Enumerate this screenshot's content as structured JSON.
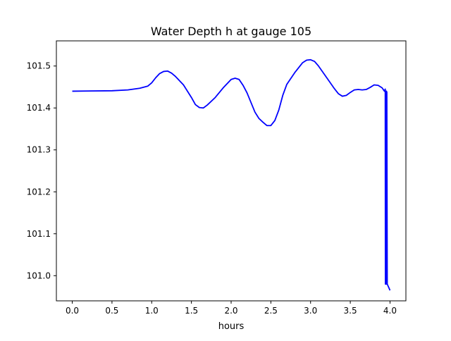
{
  "chart_data": {
    "type": "line",
    "title": "Water Depth h at gauge 105",
    "xlabel": "hours",
    "ylabel": "",
    "xlim": [
      -0.2,
      4.2
    ],
    "ylim": [
      100.94,
      101.56
    ],
    "xticks": [
      0.0,
      0.5,
      1.0,
      1.5,
      2.0,
      2.5,
      3.0,
      3.5,
      4.0
    ],
    "xtick_labels": [
      "0.0",
      "0.5",
      "1.0",
      "1.5",
      "2.0",
      "2.5",
      "3.0",
      "3.5",
      "4.0"
    ],
    "yticks": [
      101.0,
      101.1,
      101.2,
      101.3,
      101.4,
      101.5
    ],
    "ytick_labels": [
      "101.0",
      "101.1",
      "101.2",
      "101.3",
      "101.4",
      "101.5"
    ],
    "grid": false,
    "legend": "none",
    "series": [
      {
        "color": "#0000ff",
        "x": [
          0.0,
          0.5,
          0.7,
          0.85,
          0.95,
          1.0,
          1.05,
          1.1,
          1.15,
          1.2,
          1.25,
          1.3,
          1.4,
          1.5,
          1.55,
          1.6,
          1.65,
          1.7,
          1.8,
          1.9,
          2.0,
          2.05,
          2.1,
          2.15,
          2.2,
          2.3,
          2.35,
          2.4,
          2.45,
          2.5,
          2.55,
          2.6,
          2.65,
          2.7,
          2.8,
          2.9,
          2.95,
          3.0,
          3.05,
          3.1,
          3.2,
          3.3,
          3.35,
          3.4,
          3.45,
          3.5,
          3.55,
          3.6,
          3.65,
          3.7,
          3.75,
          3.8,
          3.85,
          3.9,
          3.93,
          3.94,
          3.942,
          3.944,
          3.946,
          3.948,
          3.95,
          3.952,
          3.954,
          3.956,
          3.958,
          3.96,
          3.965,
          4.0
        ],
        "y": [
          101.44,
          101.441,
          101.443,
          101.447,
          101.452,
          101.46,
          101.472,
          101.482,
          101.487,
          101.488,
          101.483,
          101.475,
          101.455,
          101.425,
          101.408,
          101.401,
          101.4,
          101.407,
          101.425,
          101.448,
          101.468,
          101.471,
          101.468,
          101.454,
          101.436,
          101.39,
          101.375,
          101.366,
          101.358,
          101.358,
          101.37,
          101.395,
          101.43,
          101.456,
          101.484,
          101.508,
          101.514,
          101.515,
          101.511,
          101.5,
          101.473,
          101.446,
          101.434,
          101.428,
          101.43,
          101.437,
          101.443,
          101.444,
          101.443,
          101.444,
          101.449,
          101.455,
          101.454,
          101.448,
          101.44,
          101.445,
          100.98,
          101.44,
          100.98,
          101.44,
          100.98,
          101.44,
          100.98,
          101.44,
          100.98,
          101.438,
          100.98,
          100.965
        ]
      }
    ]
  }
}
